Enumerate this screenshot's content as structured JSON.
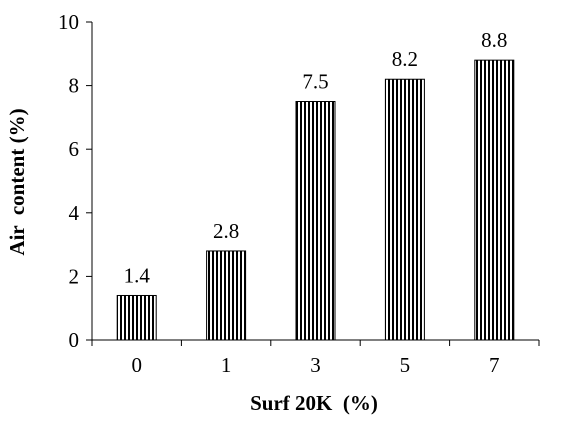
{
  "chart_data": {
    "type": "bar",
    "xlabel": "Surf 20K  (%)",
    "ylabel": "Air  content (%)",
    "categories": [
      "0",
      "1",
      "3",
      "5",
      "7"
    ],
    "values": [
      1.4,
      2.8,
      7.5,
      8.2,
      8.8
    ],
    "data_labels": [
      "1.4",
      "2.8",
      "7.5",
      "8.2",
      "8.8"
    ],
    "ylim": [
      0,
      10
    ],
    "yticks": [
      "0",
      "2",
      "4",
      "6",
      "8",
      "10"
    ],
    "grid": false,
    "legend": "none",
    "bar_fill": "vertical-hatch",
    "colors": {
      "bar_stroke": "#000000",
      "axis": "#000000",
      "background": "#ffffff"
    }
  }
}
